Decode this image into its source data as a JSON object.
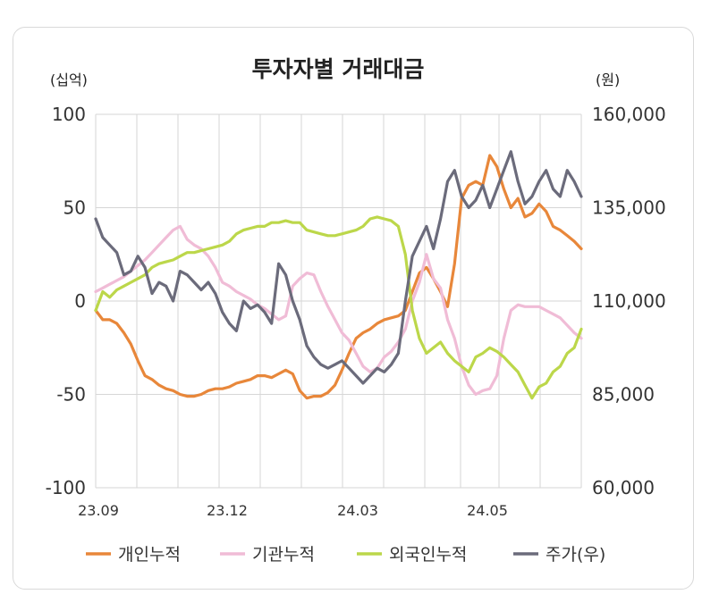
{
  "chart_data": {
    "type": "line",
    "title": "투자자별 거래대금",
    "y_left_unit": "(십억)",
    "y_right_unit": "(원)",
    "y_left_range": [
      -100,
      100
    ],
    "y_right_range": [
      60000,
      160000
    ],
    "y_left_ticks": [
      "100",
      "50",
      "0",
      "-50",
      "-100"
    ],
    "y_right_ticks": [
      "160,000",
      "135,000",
      "110,000",
      "85,000",
      "60,000"
    ],
    "x_ticks": [
      "23.09",
      "23.12",
      "24.03",
      "24.05"
    ],
    "grid": true,
    "legend_position": "bottom",
    "colors": {
      "individual": "#e8873a",
      "institution": "#f0bcd6",
      "foreign": "#bcd74a",
      "price": "#6b6b7b"
    },
    "series": [
      {
        "name": "개인누적",
        "axis": "left",
        "values": [
          -5,
          -10,
          -10,
          -12,
          -17,
          -23,
          -32,
          -40,
          -42,
          -45,
          -47,
          -48,
          -50,
          -51,
          -51,
          -50,
          -48,
          -47,
          -47,
          -46,
          -44,
          -43,
          -42,
          -40,
          -40,
          -41,
          -39,
          -37,
          -39,
          -48,
          -52,
          -51,
          -51,
          -49,
          -45,
          -37,
          -28,
          -20,
          -17,
          -15,
          -12,
          -10,
          -9,
          -8,
          -5,
          5,
          15,
          18,
          12,
          5,
          -3,
          20,
          55,
          62,
          64,
          62,
          78,
          72,
          60,
          50,
          55,
          45,
          47,
          52,
          48,
          40,
          38,
          35,
          32,
          28
        ]
      },
      {
        "name": "기관누적",
        "axis": "left",
        "values": [
          5,
          7,
          9,
          11,
          13,
          16,
          19,
          22,
          26,
          30,
          34,
          38,
          40,
          33,
          30,
          28,
          24,
          18,
          10,
          8,
          5,
          3,
          1,
          -2,
          -4,
          -7,
          -10,
          -8,
          8,
          12,
          15,
          14,
          5,
          -3,
          -10,
          -17,
          -21,
          -28,
          -35,
          -38,
          -36,
          -30,
          -27,
          -22,
          -15,
          0,
          10,
          25,
          12,
          7,
          -10,
          -20,
          -35,
          -45,
          -50,
          -48,
          -47,
          -40,
          -20,
          -5,
          -2,
          -3,
          -3,
          -3,
          -5,
          -7,
          -9,
          -13,
          -17,
          -20
        ]
      },
      {
        "name": "외국인누적",
        "axis": "left",
        "values": [
          -5,
          5,
          2,
          6,
          8,
          10,
          12,
          14,
          18,
          20,
          21,
          22,
          24,
          26,
          26,
          27,
          28,
          29,
          30,
          32,
          36,
          38,
          39,
          40,
          40,
          42,
          42,
          43,
          42,
          42,
          38,
          37,
          36,
          35,
          35,
          36,
          37,
          38,
          40,
          44,
          45,
          44,
          43,
          40,
          25,
          -5,
          -20,
          -28,
          -25,
          -22,
          -28,
          -32,
          -35,
          -38,
          -30,
          -28,
          -25,
          -27,
          -30,
          -34,
          -38,
          -45,
          -52,
          -46,
          -44,
          -38,
          -35,
          -28,
          -25,
          -15
        ]
      },
      {
        "name": "주가(우)",
        "axis": "right",
        "values": [
          132000,
          127000,
          125000,
          123000,
          117000,
          118000,
          122000,
          119000,
          112000,
          115000,
          114000,
          110000,
          118000,
          117000,
          115000,
          113000,
          115000,
          112000,
          107000,
          104000,
          102000,
          110000,
          108000,
          109000,
          107000,
          104000,
          120000,
          117000,
          110000,
          105000,
          98000,
          95000,
          93000,
          92000,
          93000,
          94000,
          92000,
          90000,
          88000,
          90000,
          92000,
          91000,
          93000,
          96000,
          110000,
          122000,
          126000,
          130000,
          124000,
          132000,
          142000,
          145000,
          138000,
          135000,
          137000,
          141000,
          135000,
          140000,
          145000,
          150000,
          142000,
          136000,
          138000,
          142000,
          145000,
          140000,
          138000,
          145000,
          142000,
          138000
        ]
      }
    ]
  }
}
